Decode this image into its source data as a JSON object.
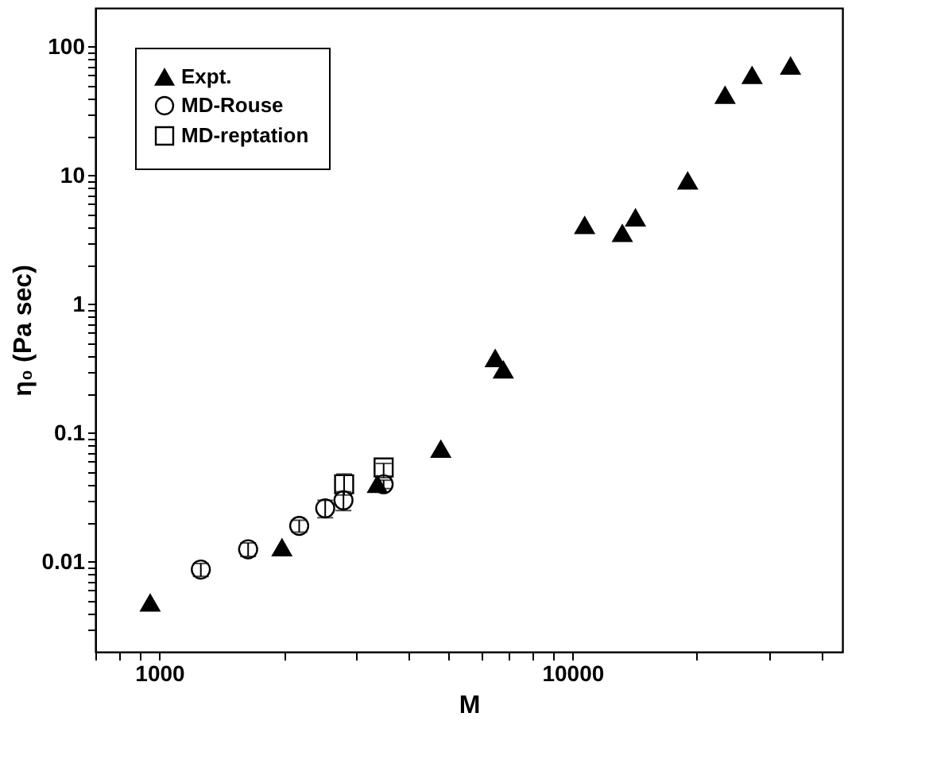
{
  "chart_data": {
    "type": "scatter",
    "xlabel": "M",
    "ylabel": "η₀ (Pa sec)",
    "log": "xy",
    "grid": false,
    "legend": "top left",
    "xlim": [
      700,
      45000
    ],
    "ylim": [
      0.002,
      200
    ],
    "xticks": [
      {
        "value": 700,
        "label": null
      },
      {
        "value": 800,
        "label": null
      },
      {
        "value": 900,
        "label": null
      },
      1000,
      {
        "value": 2000,
        "label": null
      },
      {
        "value": 3000,
        "label": null
      },
      {
        "value": 4000,
        "label": null
      },
      {
        "value": 5000,
        "label": null
      },
      {
        "value": 6000,
        "label": null
      },
      {
        "value": 7000,
        "label": null
      },
      {
        "value": 8000,
        "label": null
      },
      {
        "value": 9000,
        "label": null
      },
      10000,
      {
        "value": 20000,
        "label": null
      },
      {
        "value": 30000,
        "label": null
      },
      {
        "value": 40000,
        "label": null
      }
    ],
    "yticks": [
      {
        "value": 0.003,
        "label": null
      },
      {
        "value": 0.004,
        "label": null
      },
      {
        "value": 0.005,
        "label": null
      },
      {
        "value": 0.006,
        "label": null
      },
      {
        "value": 0.007,
        "label": null
      },
      {
        "value": 0.008,
        "label": null
      },
      {
        "value": 0.009,
        "label": null
      },
      0.01,
      {
        "value": 0.02,
        "label": null
      },
      {
        "value": 0.03,
        "label": null
      },
      {
        "value": 0.04,
        "label": null
      },
      {
        "value": 0.05,
        "label": null
      },
      {
        "value": 0.06,
        "label": null
      },
      {
        "value": 0.07,
        "label": null
      },
      {
        "value": 0.08,
        "label": null
      },
      {
        "value": 0.09,
        "label": null
      },
      0.1,
      {
        "value": 0.2,
        "label": null
      },
      {
        "value": 0.3,
        "label": null
      },
      {
        "value": 0.4,
        "label": null
      },
      {
        "value": 0.5,
        "label": null
      },
      {
        "value": 0.6,
        "label": null
      },
      {
        "value": 0.7,
        "label": null
      },
      {
        "value": 0.8,
        "label": null
      },
      {
        "value": 0.9,
        "label": null
      },
      1,
      {
        "value": 2,
        "label": null
      },
      {
        "value": 3,
        "label": null
      },
      {
        "value": 4,
        "label": null
      },
      {
        "value": 5,
        "label": null
      },
      {
        "value": 6,
        "label": null
      },
      {
        "value": 7,
        "label": null
      },
      {
        "value": 8,
        "label": null
      },
      {
        "value": 9,
        "label": null
      },
      10,
      {
        "value": 20,
        "label": null
      },
      {
        "value": 30,
        "label": null
      },
      {
        "value": 40,
        "label": null
      },
      {
        "value": 50,
        "label": null
      },
      {
        "value": 60,
        "label": null
      },
      {
        "value": 70,
        "label": null
      },
      {
        "value": 80,
        "label": null
      },
      {
        "value": 90,
        "label": null
      },
      100
    ],
    "series": [
      {
        "name": "Expt.",
        "color": "#000000",
        "marker": "triangle",
        "x": [
          950,
          1980,
          3370,
          4800,
          6500,
          6800,
          10700,
          13200,
          14200,
          19000,
          23400,
          27200,
          33700
        ],
        "values": [
          0.0048,
          0.0129,
          0.04,
          0.075,
          0.38,
          0.31,
          4.1,
          3.56,
          4.7,
          9.1,
          42,
          60,
          71
        ]
      },
      {
        "name": "MD-Rouse",
        "color": "#000000",
        "marker": "circle",
        "x": [
          1260,
          1640,
          2180,
          2520,
          2790,
          3490
        ],
        "values": [
          0.0087,
          0.0125,
          0.019,
          0.026,
          0.03,
          0.04
        ],
        "errors": [
          0.001,
          0.0015,
          0.002,
          0.004,
          0.005,
          0.003
        ]
      },
      {
        "name": "MD-reptation",
        "color": "#000000",
        "marker": "square",
        "x": [
          2800,
          3490
        ],
        "values": [
          0.04,
          0.054
        ],
        "errors": [
          [
            0.033,
            0.048
          ],
          [
            0.045,
            0.058
          ]
        ]
      }
    ]
  }
}
